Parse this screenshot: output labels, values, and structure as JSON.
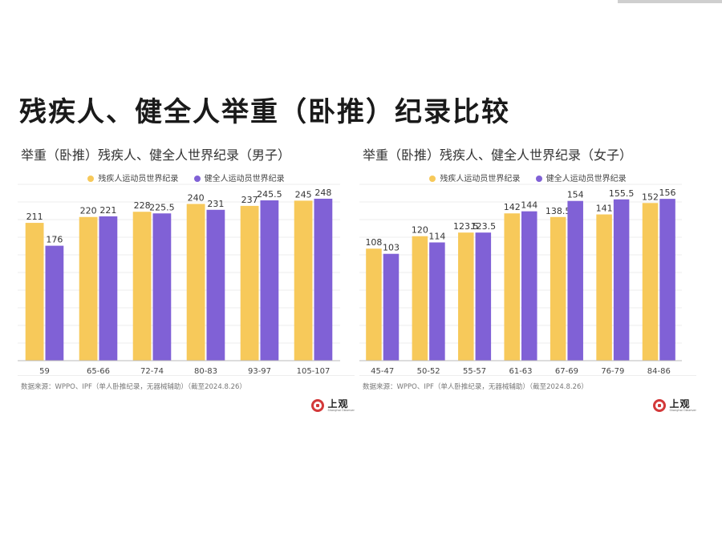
{
  "page": {
    "title": "残疾人、健全人举重（卧推）纪录比较"
  },
  "colors": {
    "disabled": "#f7c95a",
    "ablebodied": "#8061d6",
    "grid": "#ececec"
  },
  "logo": {
    "cn": "上观",
    "en": "Shanghai Observer"
  },
  "chart_data": [
    {
      "type": "bar",
      "title": "举重（卧推）残疾人、健全人世界纪录（男子）",
      "categories": [
        "59",
        "65-66",
        "72-74",
        "80-83",
        "93-97",
        "105-107"
      ],
      "series": [
        {
          "name": "残疾人运动员世界纪录",
          "values": [
            211,
            220,
            228,
            240,
            237,
            245
          ]
        },
        {
          "name": "健全人运动员世界纪录",
          "values": [
            176,
            221,
            225.5,
            231,
            245.5,
            248
          ]
        }
      ],
      "ylim": [
        0,
        270
      ],
      "grid": true,
      "legend": "top-center",
      "source": "数据来源：WPPO、IPF（单人卧推纪录，无器械辅助）（截至2024.8.26）"
    },
    {
      "type": "bar",
      "title": "举重（卧推）残疾人、健全人世界纪录（女子）",
      "categories": [
        "45-47",
        "50-52",
        "55-57",
        "61-63",
        "67-69",
        "76-79",
        "84-86"
      ],
      "series": [
        {
          "name": "残疾人运动员世界纪录",
          "values": [
            108,
            120,
            123.5,
            142,
            138.5,
            141,
            152
          ]
        },
        {
          "name": "健全人运动员世界纪录",
          "values": [
            103,
            114,
            123.5,
            144,
            154,
            155.5,
            156
          ]
        }
      ],
      "ylim": [
        0,
        170
      ],
      "grid": true,
      "legend": "top-center",
      "source": "数据来源：WPPO、IPF（单人卧推纪录，无器械辅助）（截至2024.8.26）"
    }
  ]
}
